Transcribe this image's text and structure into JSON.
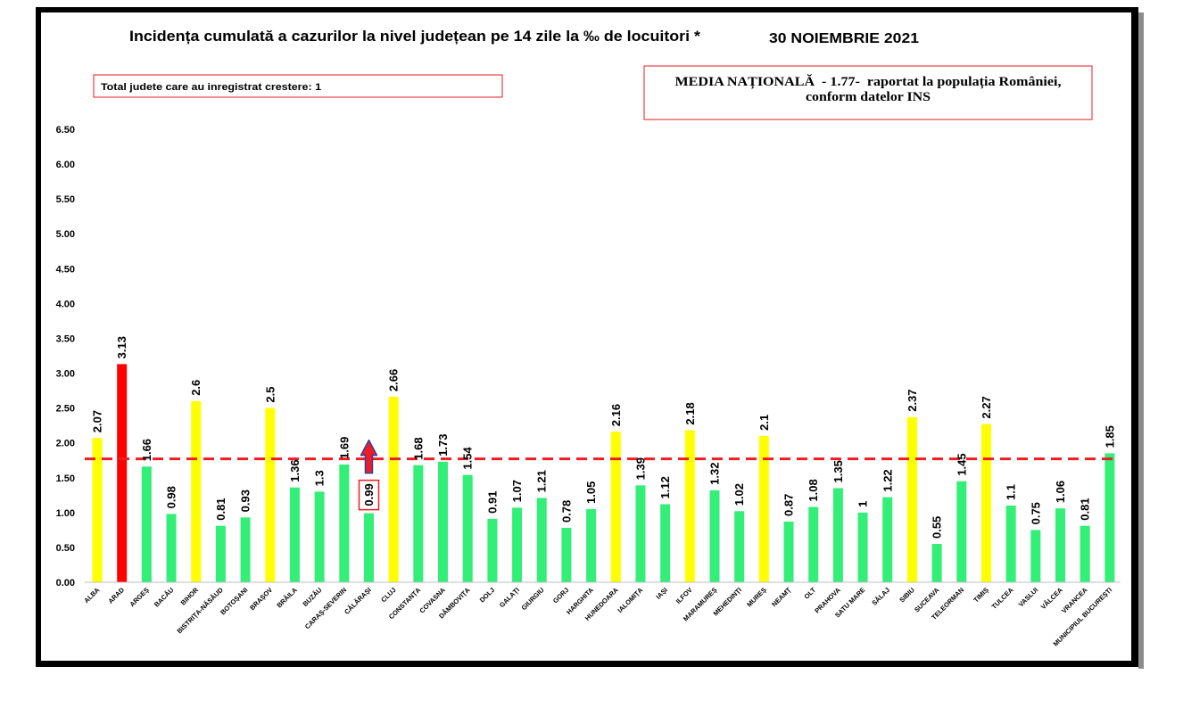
{
  "chart_data": {
    "type": "bar",
    "title": "Incidența cumulată a cazurilor la nivel județean pe 14 zile la ‰ de locuitori *",
    "date": "30 NOIEMBRIE 2021",
    "xlabel": "",
    "ylabel": "",
    "ylim": [
      0,
      6.5
    ],
    "yticks": [
      "0.00",
      "0.50",
      "1.00",
      "1.50",
      "2.00",
      "2.50",
      "3.00",
      "3.50",
      "4.00",
      "4.50",
      "5.00",
      "5.50",
      "6.00",
      "6.50"
    ],
    "grid": false,
    "categories": [
      "ALBA",
      "ARAD",
      "ARGEȘ",
      "BACĂU",
      "BIHOR",
      "BISTRIȚA-NĂSĂUD",
      "BOTOȘANI",
      "BRAȘOV",
      "BRĂILA",
      "BUZĂU",
      "CARAȘ-SEVERIN",
      "CĂLĂRAȘI",
      "CLUJ",
      "CONSTANȚA",
      "COVASNA",
      "DÂMBOVIȚA",
      "DOLJ",
      "GALAȚI",
      "GIURGIU",
      "GORJ",
      "HARGHITA",
      "HUNEDOARA",
      "IALOMIȚA",
      "IAȘI",
      "ILFOV",
      "MARAMUREȘ",
      "MEHEDINȚI",
      "MUREȘ",
      "NEAMȚ",
      "OLT",
      "PRAHOVA",
      "SATU MARE",
      "SĂLAJ",
      "SIBIU",
      "SUCEAVA",
      "TELEORMAN",
      "TIMIȘ",
      "TULCEA",
      "VASLUI",
      "VÂLCEA",
      "VRANCEA",
      "MUNICIPIUL BUCUREȘTI"
    ],
    "values": [
      2.07,
      3.13,
      1.66,
      0.98,
      2.6,
      0.81,
      0.93,
      2.5,
      1.36,
      1.3,
      1.69,
      0.99,
      2.66,
      1.68,
      1.73,
      1.54,
      0.91,
      1.07,
      1.21,
      0.78,
      1.05,
      2.16,
      1.39,
      1.12,
      2.18,
      1.32,
      1.02,
      2.1,
      0.87,
      1.08,
      1.35,
      1,
      1.22,
      2.37,
      0.55,
      1.45,
      2.27,
      1.1,
      0.75,
      1.06,
      0.81,
      1.85
    ],
    "bar_colors": [
      "#ffff00",
      "#ff0000",
      "#33ee77",
      "#33ee77",
      "#ffff00",
      "#33ee77",
      "#33ee77",
      "#ffff00",
      "#33ee77",
      "#33ee77",
      "#33ee77",
      "#33ee77",
      "#ffff00",
      "#33ee77",
      "#33ee77",
      "#33ee77",
      "#33ee77",
      "#33ee77",
      "#33ee77",
      "#33ee77",
      "#33ee77",
      "#ffff00",
      "#33ee77",
      "#33ee77",
      "#ffff00",
      "#33ee77",
      "#33ee77",
      "#ffff00",
      "#33ee77",
      "#33ee77",
      "#33ee77",
      "#33ee77",
      "#33ee77",
      "#ffff00",
      "#33ee77",
      "#33ee77",
      "#ffff00",
      "#33ee77",
      "#33ee77",
      "#33ee77",
      "#33ee77",
      "#33ee77"
    ],
    "reference_line": {
      "value": 1.77,
      "color": "#ee1c25"
    },
    "highlight": {
      "index": 11,
      "icon": "up-arrow-icon",
      "box_color": "#ee1c25",
      "arrow_fill": "#ee1c25",
      "arrow_outline": "#2f3f9e"
    }
  },
  "info_box_left": {
    "text": "Total judete care au inregistrat crestere: 1",
    "border_color": "#e31b23"
  },
  "info_box_right": {
    "line1": "MEDIA NAȚIONALĂ  - 1.77-  raportat la populația României,",
    "line2": "conform datelor INS",
    "border_color": "#e31b23"
  }
}
